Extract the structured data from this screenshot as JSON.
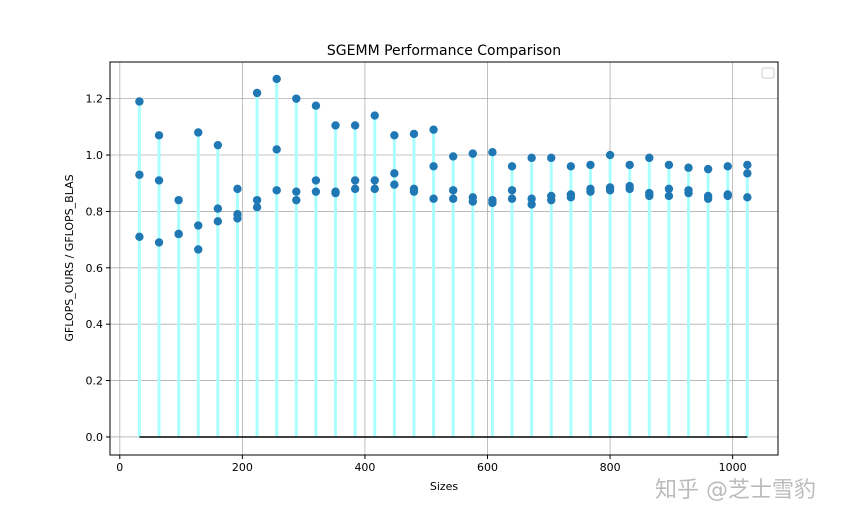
{
  "chart_data": {
    "type": "scatter",
    "title": "SGEMM Performance Comparison",
    "xlabel": "Sizes",
    "ylabel": "GFLOPS_OURS / GFLOPS_BLAS",
    "xlim": [
      -16,
      1074
    ],
    "ylim": [
      -0.064,
      1.33
    ],
    "xticks": [
      0,
      200,
      400,
      600,
      800,
      1000
    ],
    "yticks": [
      0.0,
      0.2,
      0.4,
      0.6,
      0.8,
      1.0,
      1.2
    ],
    "grid": true,
    "legend": "top-right (empty)",
    "x": [
      32,
      64,
      96,
      128,
      160,
      192,
      224,
      256,
      288,
      320,
      352,
      384,
      416,
      448,
      480,
      512,
      544,
      576,
      608,
      640,
      672,
      704,
      736,
      768,
      800,
      832,
      864,
      896,
      928,
      960,
      992,
      1024
    ],
    "series": [
      {
        "values": [
          1.19,
          1.07,
          0.84,
          1.08,
          1.035,
          0.88,
          1.22,
          1.27,
          1.2,
          1.175,
          1.105,
          1.105,
          1.14,
          1.07,
          1.075,
          1.09,
          0.995,
          1.005,
          1.01,
          0.96,
          0.99,
          0.99,
          0.96,
          0.965,
          1.0,
          0.965,
          0.99,
          0.965,
          0.955,
          0.95,
          0.96,
          0.965
        ]
      },
      {
        "values": [
          0.93,
          0.91,
          0.72,
          0.75,
          0.81,
          0.79,
          0.84,
          1.02,
          0.87,
          0.91,
          0.87,
          0.91,
          0.91,
          0.935,
          0.88,
          0.96,
          0.875,
          0.85,
          0.84,
          0.875,
          0.845,
          0.855,
          0.86,
          0.88,
          0.885,
          0.89,
          0.865,
          0.88,
          0.875,
          0.855,
          0.86,
          0.935
        ]
      },
      {
        "values": [
          0.71,
          0.69,
          0.72,
          0.665,
          0.765,
          0.775,
          0.815,
          0.875,
          0.84,
          0.87,
          0.865,
          0.88,
          0.88,
          0.895,
          0.87,
          0.845,
          0.845,
          0.835,
          0.83,
          0.845,
          0.825,
          0.84,
          0.85,
          0.87,
          0.875,
          0.88,
          0.855,
          0.855,
          0.865,
          0.845,
          0.855,
          0.85
        ]
      }
    ],
    "colors": {
      "marker": "#1f77b4",
      "stem": "#aaffff",
      "baseline": "#000000",
      "grid": "#b0b0b0"
    }
  },
  "watermark": "知乎 @芝士雪豹"
}
